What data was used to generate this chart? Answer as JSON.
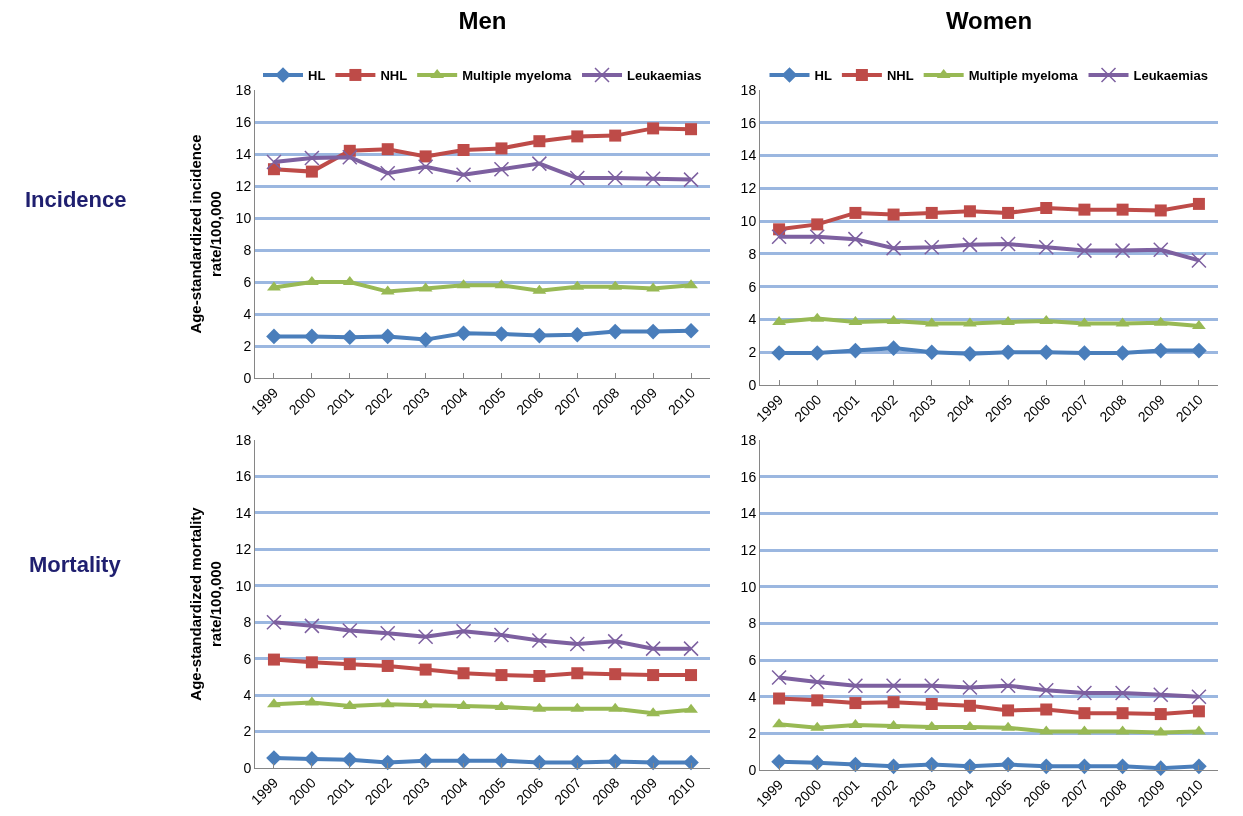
{
  "chart_data": [
    {
      "type": "line",
      "title": "Men",
      "ylabel": "Age-standardized incidence rate/100,000",
      "annotations": [
        "Incidence"
      ],
      "categories": [
        "1999",
        "2000",
        "2001",
        "2002",
        "2003",
        "2004",
        "2005",
        "2006",
        "2007",
        "2008",
        "2009",
        "2010"
      ],
      "ylim": [
        0,
        18
      ],
      "yticks": [
        0,
        2,
        4,
        6,
        8,
        10,
        12,
        14,
        16,
        18
      ],
      "grid": "y",
      "legend": "top",
      "series": [
        {
          "name": "HL",
          "color": "#4a7ebb",
          "marker": "diamond",
          "values": [
            2.6,
            2.6,
            2.55,
            2.6,
            2.4,
            2.8,
            2.75,
            2.65,
            2.7,
            2.9,
            2.9,
            2.95
          ]
        },
        {
          "name": "NHL",
          "color": "#be4b48",
          "marker": "square",
          "values": [
            13.05,
            12.9,
            14.2,
            14.3,
            13.85,
            14.25,
            14.35,
            14.8,
            15.1,
            15.15,
            15.6,
            15.55
          ]
        },
        {
          "name": "Multiple myeloma",
          "color": "#98b954",
          "marker": "triangle",
          "values": [
            5.65,
            6.0,
            6.0,
            5.4,
            5.6,
            5.8,
            5.8,
            5.45,
            5.7,
            5.7,
            5.6,
            5.8
          ]
        },
        {
          "name": "Leukaemias",
          "color": "#7d60a0",
          "marker": "cross",
          "values": [
            13.5,
            13.75,
            13.8,
            12.8,
            13.2,
            12.7,
            13.05,
            13.4,
            12.5,
            12.5,
            12.45,
            12.4
          ]
        }
      ]
    },
    {
      "type": "line",
      "title": "Women",
      "categories": [
        "1999",
        "2000",
        "2001",
        "2002",
        "2003",
        "2004",
        "2005",
        "2006",
        "2007",
        "2008",
        "2009",
        "2010"
      ],
      "ylim": [
        0,
        18
      ],
      "yticks": [
        0,
        2,
        4,
        6,
        8,
        10,
        12,
        14,
        16,
        18
      ],
      "grid": "y",
      "legend": "top",
      "series": [
        {
          "name": "HL",
          "color": "#4a7ebb",
          "marker": "diamond",
          "values": [
            1.95,
            1.95,
            2.1,
            2.25,
            2.0,
            1.9,
            2.0,
            2.0,
            1.95,
            1.95,
            2.1,
            2.1
          ]
        },
        {
          "name": "NHL",
          "color": "#be4b48",
          "marker": "square",
          "values": [
            9.5,
            9.8,
            10.5,
            10.4,
            10.5,
            10.6,
            10.5,
            10.8,
            10.7,
            10.7,
            10.65,
            11.05
          ]
        },
        {
          "name": "Multiple myeloma",
          "color": "#98b954",
          "marker": "triangle",
          "values": [
            3.85,
            4.05,
            3.85,
            3.9,
            3.75,
            3.75,
            3.85,
            3.9,
            3.75,
            3.75,
            3.8,
            3.6
          ]
        },
        {
          "name": "Leukaemias",
          "color": "#7d60a0",
          "marker": "cross",
          "values": [
            9.05,
            9.05,
            8.9,
            8.35,
            8.4,
            8.55,
            8.6,
            8.4,
            8.2,
            8.2,
            8.25,
            7.6
          ]
        }
      ]
    },
    {
      "type": "line",
      "ylabel": "Age-standardized mortality rate/100,000",
      "annotations": [
        "Mortality"
      ],
      "categories": [
        "1999",
        "2000",
        "2001",
        "2002",
        "2003",
        "2004",
        "2005",
        "2006",
        "2007",
        "2008",
        "2009",
        "2010"
      ],
      "ylim": [
        0,
        18
      ],
      "yticks": [
        0,
        2,
        4,
        6,
        8,
        10,
        12,
        14,
        16,
        18
      ],
      "grid": "y",
      "series": [
        {
          "color": "#4a7ebb",
          "marker": "diamond",
          "values": [
            0.55,
            0.5,
            0.45,
            0.3,
            0.4,
            0.4,
            0.4,
            0.3,
            0.3,
            0.35,
            0.3,
            0.3
          ]
        },
        {
          "color": "#be4b48",
          "marker": "square",
          "values": [
            5.95,
            5.8,
            5.7,
            5.6,
            5.4,
            5.2,
            5.1,
            5.05,
            5.2,
            5.15,
            5.1,
            5.1
          ]
        },
        {
          "color": "#98b954",
          "marker": "triangle",
          "values": [
            3.5,
            3.6,
            3.4,
            3.5,
            3.45,
            3.4,
            3.35,
            3.25,
            3.25,
            3.25,
            3.0,
            3.2
          ]
        },
        {
          "color": "#7d60a0",
          "marker": "cross",
          "values": [
            8.0,
            7.8,
            7.55,
            7.4,
            7.2,
            7.5,
            7.3,
            7.0,
            6.8,
            6.95,
            6.55,
            6.55
          ]
        }
      ]
    },
    {
      "type": "line",
      "categories": [
        "1999",
        "2000",
        "2001",
        "2002",
        "2003",
        "2004",
        "2005",
        "2006",
        "2007",
        "2008",
        "2009",
        "2010"
      ],
      "ylim": [
        0,
        18
      ],
      "yticks": [
        0,
        2,
        4,
        6,
        8,
        10,
        12,
        14,
        16,
        18
      ],
      "grid": "y",
      "series": [
        {
          "color": "#4a7ebb",
          "marker": "diamond",
          "values": [
            0.45,
            0.4,
            0.3,
            0.2,
            0.3,
            0.2,
            0.3,
            0.2,
            0.2,
            0.2,
            0.1,
            0.2
          ]
        },
        {
          "color": "#be4b48",
          "marker": "square",
          "values": [
            3.9,
            3.8,
            3.65,
            3.7,
            3.6,
            3.5,
            3.25,
            3.3,
            3.1,
            3.1,
            3.05,
            3.2
          ]
        },
        {
          "color": "#98b954",
          "marker": "triangle",
          "values": [
            2.5,
            2.3,
            2.45,
            2.4,
            2.35,
            2.35,
            2.3,
            2.1,
            2.1,
            2.1,
            2.05,
            2.1
          ]
        },
        {
          "color": "#7d60a0",
          "marker": "cross",
          "values": [
            5.05,
            4.8,
            4.6,
            4.6,
            4.6,
            4.5,
            4.6,
            4.35,
            4.2,
            4.2,
            4.1,
            4.0
          ]
        }
      ]
    }
  ]
}
